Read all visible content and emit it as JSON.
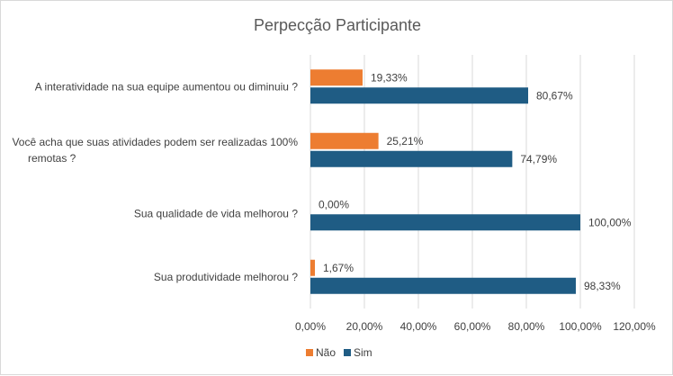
{
  "chart_data": {
    "type": "bar",
    "orientation": "horizontal",
    "title": "Perpecção Participante",
    "categories": [
      [
        "A interatividade na sua equipe aumentou ou diminuiu ?"
      ],
      [
        "Você acha que suas atividades podem ser realizadas 100%",
        "remotas ?"
      ],
      [
        "Sua qualidade de vida melhorou ?"
      ],
      [
        "Sua produtividade melhorou ?"
      ]
    ],
    "series": [
      {
        "name": "Não",
        "color": "#ed7d31",
        "values": [
          19.33,
          25.21,
          0.0,
          1.67
        ],
        "labels": [
          "19,33%",
          "25,21%",
          "0,00%",
          "1,67%"
        ]
      },
      {
        "name": "Sim",
        "color": "#1f5c84",
        "values": [
          80.67,
          74.79,
          100.0,
          98.33
        ],
        "labels": [
          "80,67%",
          "74,79%",
          "100,00%",
          "98,33%"
        ]
      }
    ],
    "xlim": [
      0,
      120
    ],
    "xticks": [
      "0,00%",
      "20,00%",
      "40,00%",
      "60,00%",
      "80,00%",
      "100,00%",
      "120,00%"
    ],
    "grid": true,
    "legend_position": "bottom"
  }
}
